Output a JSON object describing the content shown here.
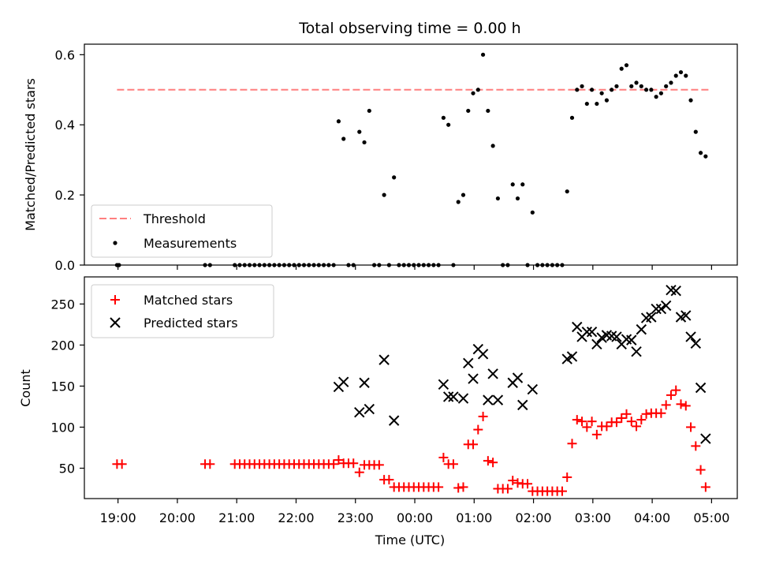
{
  "chart_data": [
    {
      "type": "scatter",
      "title": "Total observing time = 0.00 h",
      "ylabel": "Matched/Predicted stars",
      "ylim": [
        0,
        0.63
      ],
      "yticks": [
        0.0,
        0.2,
        0.4,
        0.6
      ],
      "ytick_labels": [
        "0.0",
        "0.2",
        "0.4",
        "0.6"
      ],
      "legend": {
        "placement": "lower-left",
        "entries": [
          "Threshold",
          "Measurements"
        ]
      },
      "threshold": {
        "name": "Threshold",
        "value": 0.5,
        "x_start": "18:59",
        "x_end": "04:59",
        "color": "#ff7f7f"
      },
      "series": [
        {
          "name": "Measurements",
          "color": "#000000",
          "points": [
            [
              "18:59",
              0.0
            ],
            [
              "19:01",
              0.0
            ],
            [
              "20:28",
              0.0
            ],
            [
              "20:33",
              0.0
            ],
            [
              "20:58",
              0.0
            ],
            [
              "21:03",
              0.0
            ],
            [
              "21:08",
              0.0
            ],
            [
              "21:13",
              0.0
            ],
            [
              "21:18",
              0.0
            ],
            [
              "21:23",
              0.0
            ],
            [
              "21:28",
              0.0
            ],
            [
              "21:33",
              0.0
            ],
            [
              "21:38",
              0.0
            ],
            [
              "21:43",
              0.0
            ],
            [
              "21:48",
              0.0
            ],
            [
              "21:53",
              0.0
            ],
            [
              "21:58",
              0.0
            ],
            [
              "22:03",
              0.0
            ],
            [
              "22:08",
              0.0
            ],
            [
              "22:13",
              0.0
            ],
            [
              "22:18",
              0.0
            ],
            [
              "22:23",
              0.0
            ],
            [
              "22:28",
              0.0
            ],
            [
              "22:33",
              0.0
            ],
            [
              "22:38",
              0.0
            ],
            [
              "22:43",
              0.41
            ],
            [
              "22:48",
              0.36
            ],
            [
              "22:53",
              0.0
            ],
            [
              "22:58",
              0.0
            ],
            [
              "23:04",
              0.38
            ],
            [
              "23:09",
              0.35
            ],
            [
              "23:14",
              0.44
            ],
            [
              "23:19",
              0.0
            ],
            [
              "23:24",
              0.0
            ],
            [
              "23:29",
              0.2
            ],
            [
              "23:34",
              0.0
            ],
            [
              "23:39",
              0.25
            ],
            [
              "23:44",
              0.0
            ],
            [
              "23:49",
              0.0
            ],
            [
              "23:54",
              0.0
            ],
            [
              "23:59",
              0.0
            ],
            [
              "00:04",
              0.0
            ],
            [
              "00:09",
              0.0
            ],
            [
              "00:14",
              0.0
            ],
            [
              "00:19",
              0.0
            ],
            [
              "00:24",
              0.0
            ],
            [
              "00:29",
              0.42
            ],
            [
              "00:34",
              0.4
            ],
            [
              "00:39",
              0.0
            ],
            [
              "00:44",
              0.18
            ],
            [
              "00:49",
              0.2
            ],
            [
              "00:54",
              0.44
            ],
            [
              "00:59",
              0.49
            ],
            [
              "01:04",
              0.5
            ],
            [
              "01:09",
              0.6
            ],
            [
              "01:14",
              0.44
            ],
            [
              "01:19",
              0.34
            ],
            [
              "01:24",
              0.19
            ],
            [
              "01:29",
              0.0
            ],
            [
              "01:34",
              0.0
            ],
            [
              "01:39",
              0.23
            ],
            [
              "01:44",
              0.19
            ],
            [
              "01:49",
              0.23
            ],
            [
              "01:54",
              0.0
            ],
            [
              "01:59",
              0.15
            ],
            [
              "02:04",
              0.0
            ],
            [
              "02:09",
              0.0
            ],
            [
              "02:14",
              0.0
            ],
            [
              "02:19",
              0.0
            ],
            [
              "02:24",
              0.0
            ],
            [
              "02:29",
              0.0
            ],
            [
              "02:34",
              0.21
            ],
            [
              "02:39",
              0.42
            ],
            [
              "02:44",
              0.5
            ],
            [
              "02:49",
              0.51
            ],
            [
              "02:54",
              0.46
            ],
            [
              "02:59",
              0.5
            ],
            [
              "03:04",
              0.46
            ],
            [
              "03:09",
              0.49
            ],
            [
              "03:14",
              0.47
            ],
            [
              "03:19",
              0.5
            ],
            [
              "03:24",
              0.51
            ],
            [
              "03:29",
              0.56
            ],
            [
              "03:34",
              0.57
            ],
            [
              "03:39",
              0.51
            ],
            [
              "03:44",
              0.52
            ],
            [
              "03:49",
              0.51
            ],
            [
              "03:54",
              0.5
            ],
            [
              "03:59",
              0.5
            ],
            [
              "04:04",
              0.48
            ],
            [
              "04:09",
              0.49
            ],
            [
              "04:14",
              0.51
            ],
            [
              "04:19",
              0.52
            ],
            [
              "04:24",
              0.54
            ],
            [
              "04:29",
              0.55
            ],
            [
              "04:34",
              0.54
            ],
            [
              "04:39",
              0.47
            ],
            [
              "04:44",
              0.38
            ],
            [
              "04:49",
              0.32
            ],
            [
              "04:54",
              0.31
            ]
          ]
        }
      ]
    },
    {
      "type": "scatter",
      "xlabel": "Time (UTC)",
      "ylabel": "Count",
      "ylim": [
        13,
        283
      ],
      "yticks": [
        50,
        100,
        150,
        200,
        250
      ],
      "ytick_labels": [
        "50",
        "100",
        "150",
        "200",
        "250"
      ],
      "xlim": [
        "18:26",
        "05:26"
      ],
      "xticks": [
        "19:00",
        "20:00",
        "21:00",
        "22:00",
        "23:00",
        "00:00",
        "01:00",
        "02:00",
        "03:00",
        "04:00",
        "05:00"
      ],
      "xtick_labels": [
        "19:00",
        "20:00",
        "21:00",
        "22:00",
        "23:00",
        "00:00",
        "01:00",
        "02:00",
        "03:00",
        "04:00",
        "05:00"
      ],
      "legend": {
        "placement": "upper-left",
        "entries": [
          "Matched stars",
          "Predicted stars"
        ]
      },
      "series": [
        {
          "name": "Matched stars",
          "marker": "plus",
          "color": "#ff0000",
          "points": [
            [
              "18:59",
              55
            ],
            [
              "19:04",
              55
            ],
            [
              "20:28",
              55
            ],
            [
              "20:33",
              55
            ],
            [
              "20:58",
              55
            ],
            [
              "21:03",
              55
            ],
            [
              "21:08",
              55
            ],
            [
              "21:13",
              55
            ],
            [
              "21:18",
              55
            ],
            [
              "21:23",
              55
            ],
            [
              "21:28",
              55
            ],
            [
              "21:33",
              55
            ],
            [
              "21:38",
              55
            ],
            [
              "21:43",
              55
            ],
            [
              "21:48",
              55
            ],
            [
              "21:53",
              55
            ],
            [
              "21:58",
              55
            ],
            [
              "22:03",
              55
            ],
            [
              "22:08",
              55
            ],
            [
              "22:13",
              55
            ],
            [
              "22:18",
              55
            ],
            [
              "22:23",
              55
            ],
            [
              "22:28",
              55
            ],
            [
              "22:33",
              55
            ],
            [
              "22:38",
              55
            ],
            [
              "22:43",
              60
            ],
            [
              "22:48",
              56
            ],
            [
              "22:53",
              56
            ],
            [
              "22:58",
              56
            ],
            [
              "23:04",
              45
            ],
            [
              "23:09",
              54
            ],
            [
              "23:14",
              54
            ],
            [
              "23:19",
              54
            ],
            [
              "23:24",
              54
            ],
            [
              "23:29",
              36
            ],
            [
              "23:34",
              36
            ],
            [
              "23:39",
              27
            ],
            [
              "23:44",
              27
            ],
            [
              "23:49",
              27
            ],
            [
              "23:54",
              27
            ],
            [
              "23:59",
              27
            ],
            [
              "00:04",
              27
            ],
            [
              "00:09",
              27
            ],
            [
              "00:14",
              27
            ],
            [
              "00:19",
              27
            ],
            [
              "00:24",
              27
            ],
            [
              "00:29",
              63
            ],
            [
              "00:34",
              55
            ],
            [
              "00:39",
              55
            ],
            [
              "00:44",
              26
            ],
            [
              "00:49",
              27
            ],
            [
              "00:54",
              79
            ],
            [
              "00:59",
              79
            ],
            [
              "01:04",
              97
            ],
            [
              "01:09",
              113
            ],
            [
              "01:14",
              59
            ],
            [
              "01:19",
              57
            ],
            [
              "01:24",
              25
            ],
            [
              "01:29",
              25
            ],
            [
              "01:34",
              25
            ],
            [
              "01:39",
              35
            ],
            [
              "01:44",
              32
            ],
            [
              "01:49",
              31
            ],
            [
              "01:54",
              31
            ],
            [
              "01:59",
              22
            ],
            [
              "02:04",
              22
            ],
            [
              "02:09",
              22
            ],
            [
              "02:14",
              22
            ],
            [
              "02:19",
              22
            ],
            [
              "02:24",
              22
            ],
            [
              "02:29",
              22
            ],
            [
              "02:34",
              39
            ],
            [
              "02:39",
              80
            ],
            [
              "02:44",
              109
            ],
            [
              "02:49",
              107
            ],
            [
              "02:54",
              100
            ],
            [
              "02:59",
              107
            ],
            [
              "03:04",
              91
            ],
            [
              "03:09",
              101
            ],
            [
              "03:14",
              101
            ],
            [
              "03:19",
              106
            ],
            [
              "03:24",
              106
            ],
            [
              "03:29",
              111
            ],
            [
              "03:34",
              116
            ],
            [
              "03:39",
              107
            ],
            [
              "03:44",
              101
            ],
            [
              "03:49",
              109
            ],
            [
              "03:54",
              116
            ],
            [
              "03:59",
              117
            ],
            [
              "04:04",
              117
            ],
            [
              "04:09",
              117
            ],
            [
              "04:14",
              127
            ],
            [
              "04:19",
              139
            ],
            [
              "04:24",
              145
            ],
            [
              "04:29",
              128
            ],
            [
              "04:34",
              126
            ],
            [
              "04:39",
              100
            ],
            [
              "04:44",
              77
            ],
            [
              "04:49",
              48
            ],
            [
              "04:54",
              27
            ]
          ]
        },
        {
          "name": "Predicted stars",
          "marker": "x",
          "color": "#000000",
          "points": [
            [
              "22:43",
              149
            ],
            [
              "22:48",
              155
            ],
            [
              "23:04",
              118
            ],
            [
              "23:09",
              154
            ],
            [
              "23:14",
              122
            ],
            [
              "23:29",
              182
            ],
            [
              "23:39",
              108
            ],
            [
              "00:29",
              152
            ],
            [
              "00:34",
              137
            ],
            [
              "00:39",
              137
            ],
            [
              "00:49",
              135
            ],
            [
              "00:54",
              178
            ],
            [
              "00:59",
              159
            ],
            [
              "01:04",
              195
            ],
            [
              "01:09",
              189
            ],
            [
              "01:14",
              133
            ],
            [
              "01:19",
              165
            ],
            [
              "01:24",
              133
            ],
            [
              "01:39",
              154
            ],
            [
              "01:44",
              160
            ],
            [
              "01:49",
              127
            ],
            [
              "01:59",
              146
            ],
            [
              "02:34",
              183
            ],
            [
              "02:39",
              186
            ],
            [
              "02:44",
              222
            ],
            [
              "02:49",
              210
            ],
            [
              "02:54",
              216
            ],
            [
              "02:59",
              216
            ],
            [
              "03:04",
              201
            ],
            [
              "03:09",
              209
            ],
            [
              "03:14",
              212
            ],
            [
              "03:19",
              211
            ],
            [
              "03:24",
              210
            ],
            [
              "03:29",
              201
            ],
            [
              "03:34",
              207
            ],
            [
              "03:39",
              206
            ],
            [
              "03:44",
              192
            ],
            [
              "03:49",
              219
            ],
            [
              "03:54",
              233
            ],
            [
              "03:59",
              234
            ],
            [
              "04:04",
              244
            ],
            [
              "04:09",
              244
            ],
            [
              "04:14",
              248
            ],
            [
              "04:19",
              267
            ],
            [
              "04:24",
              266
            ],
            [
              "04:29",
              234
            ],
            [
              "04:34",
              236
            ],
            [
              "04:39",
              210
            ],
            [
              "04:44",
              202
            ],
            [
              "04:49",
              148
            ],
            [
              "04:54",
              86
            ]
          ]
        }
      ]
    }
  ]
}
